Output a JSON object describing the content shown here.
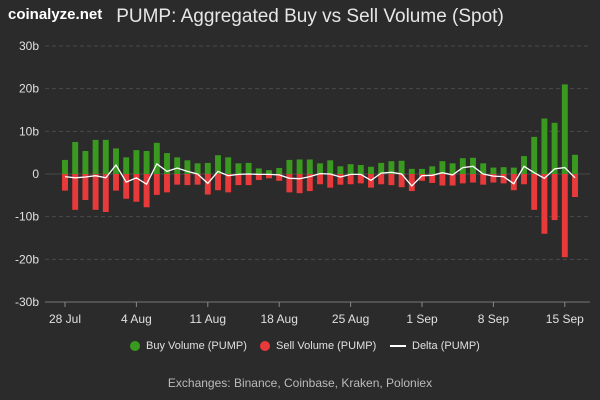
{
  "brand": "coinalyze.net",
  "footer": "Exchanges: Binance, Coinbase, Kraken, Poloniex",
  "colors": {
    "buy": "#3a9a1f",
    "sell": "#e83a3a",
    "delta": "#ffffff",
    "grid": "#4a4a4a",
    "bg": "#2b2b2b"
  },
  "chart_data": {
    "type": "bar",
    "title": "PUMP: Aggregated Buy vs Sell Volume (Spot)",
    "y_unit_suffix": "b",
    "ylim": [
      -30,
      30
    ],
    "yticks": [
      30,
      20,
      10,
      0,
      -10,
      -20,
      -30
    ],
    "ytick_labels": [
      "30b",
      "20b",
      "10b",
      "0",
      "-10b",
      "-20b",
      "-30b"
    ],
    "xtick_labels": [
      {
        "label": "28 Jul",
        "index": 0
      },
      {
        "label": "4 Aug",
        "index": 7
      },
      {
        "label": "11 Aug",
        "index": 14
      },
      {
        "label": "18 Aug",
        "index": 21
      },
      {
        "label": "25 Aug",
        "index": 28
      },
      {
        "label": "1 Sep",
        "index": 35
      },
      {
        "label": "8 Sep",
        "index": 42
      },
      {
        "label": "15 Sep",
        "index": 49
      }
    ],
    "grid": true,
    "legend_position": "bottom",
    "series": [
      {
        "name": "Buy Volume (PUMP)",
        "values": [
          3.3,
          7.5,
          5.4,
          8.0,
          8.0,
          6.0,
          3.9,
          5.6,
          5.4,
          7.3,
          4.9,
          3.9,
          3.2,
          2.5,
          2.6,
          4.4,
          3.9,
          2.5,
          2.6,
          1.3,
          0.9,
          1.4,
          3.3,
          3.4,
          3.4,
          2.5,
          3.2,
          1.8,
          2.3,
          2.1,
          1.7,
          2.6,
          3.0,
          3.1,
          1.2,
          1.2,
          1.8,
          3.0,
          2.5,
          3.7,
          3.8,
          2.5,
          1.5,
          1.6,
          1.5,
          4.2,
          8.7,
          13.0,
          12.0,
          21.0,
          4.5
        ]
      },
      {
        "name": "Sell Volume (PUMP)",
        "values": [
          -3.9,
          -8.4,
          -6.1,
          -8.4,
          -8.9,
          -3.9,
          -5.8,
          -6.5,
          -7.8,
          -4.9,
          -4.3,
          -2.5,
          -2.6,
          -2.5,
          -4.8,
          -3.8,
          -4.3,
          -2.6,
          -2.6,
          -1.4,
          -1.0,
          -1.6,
          -4.3,
          -4.5,
          -4.0,
          -2.4,
          -3.2,
          -2.5,
          -2.4,
          -2.2,
          -3.2,
          -2.4,
          -2.6,
          -3.1,
          -4.0,
          -1.6,
          -2.1,
          -2.7,
          -2.7,
          -2.2,
          -2.0,
          -2.5,
          -2.0,
          -2.2,
          -3.8,
          -2.4,
          -8.4,
          -14.0,
          -10.8,
          -19.5,
          -5.4
        ]
      },
      {
        "name": "Delta (PUMP)",
        "values": [
          -0.6,
          -0.9,
          -0.7,
          -0.4,
          -0.9,
          2.1,
          -1.9,
          -0.9,
          -2.4,
          2.4,
          0.6,
          1.4,
          0.6,
          0.0,
          -2.2,
          0.6,
          -0.4,
          -0.1,
          0.0,
          -0.1,
          -0.1,
          -0.2,
          -1.0,
          -1.1,
          -0.6,
          0.1,
          0.0,
          -0.7,
          -0.1,
          -0.1,
          -1.5,
          0.2,
          0.4,
          0.0,
          -2.8,
          -0.4,
          -0.3,
          0.3,
          -0.2,
          1.5,
          1.8,
          0.0,
          -0.5,
          -0.6,
          -2.3,
          1.8,
          0.3,
          -1.0,
          1.2,
          1.5,
          -0.9
        ]
      }
    ]
  }
}
